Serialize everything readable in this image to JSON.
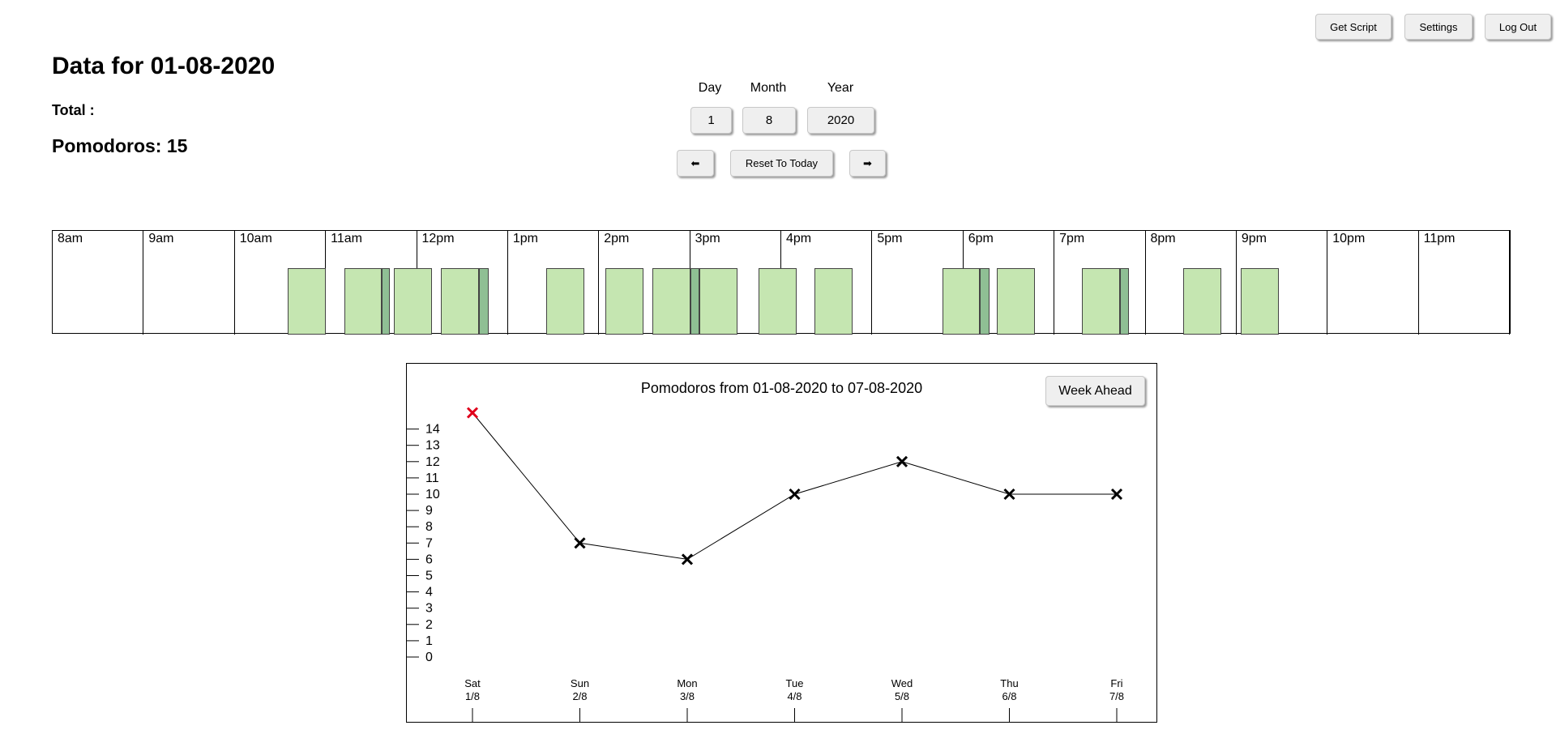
{
  "header": {
    "get_script": "Get Script",
    "settings": "Settings",
    "logout": "Log Out"
  },
  "summary": {
    "title": "Data for 01-08-2020",
    "total_label": "Total :",
    "pomodoros_text": "Pomodoros: 15"
  },
  "date_picker": {
    "day_label": "Day",
    "month_label": "Month",
    "year_label": "Year",
    "day_value": "1",
    "month_value": "8",
    "year_value": "2020",
    "prev_label": "⬅",
    "reset_label": "Reset To Today",
    "next_label": "➡"
  },
  "timeline": {
    "hours": [
      "8am",
      "9am",
      "10am",
      "11am",
      "12pm",
      "1pm",
      "2pm",
      "3pm",
      "4pm",
      "5pm",
      "6pm",
      "7pm",
      "8pm",
      "9pm",
      "10pm",
      "11pm"
    ],
    "start_hour": 8,
    "end_hour": 24,
    "pomodoro_color": "#c5e6b1",
    "break_color": "#8fbf94",
    "pomodoros": [
      {
        "start": "10:35",
        "end": "11:00"
      },
      {
        "start": "11:12",
        "end": "11:37"
      },
      {
        "start": "11:45",
        "end": "12:10"
      },
      {
        "start": "12:16",
        "end": "12:41"
      },
      {
        "start": "13:25",
        "end": "13:50"
      },
      {
        "start": "14:04",
        "end": "14:29"
      },
      {
        "start": "14:35",
        "end": "15:00"
      },
      {
        "start": "15:06",
        "end": "15:31"
      },
      {
        "start": "15:45",
        "end": "16:10"
      },
      {
        "start": "16:22",
        "end": "16:47"
      },
      {
        "start": "17:46",
        "end": "18:11"
      },
      {
        "start": "18:22",
        "end": "18:47"
      },
      {
        "start": "19:18",
        "end": "19:43"
      },
      {
        "start": "20:25",
        "end": "20:50"
      },
      {
        "start": "21:03",
        "end": "21:28"
      }
    ],
    "breaks": [
      {
        "start": "11:37",
        "end": "11:42"
      },
      {
        "start": "12:41",
        "end": "12:47"
      },
      {
        "start": "15:00",
        "end": "15:06"
      },
      {
        "start": "18:11",
        "end": "18:17"
      },
      {
        "start": "19:43",
        "end": "19:49"
      }
    ]
  },
  "week_chart": {
    "week_ahead_label": "Week Ahead",
    "chart_data": {
      "type": "line",
      "title": "Pomodoros from 01-08-2020 to 07-08-2020",
      "xlabel": "",
      "ylabel": "",
      "categories": [
        {
          "day": "Sat",
          "date": "1/8"
        },
        {
          "day": "Sun",
          "date": "2/8"
        },
        {
          "day": "Mon",
          "date": "3/8"
        },
        {
          "day": "Tue",
          "date": "4/8"
        },
        {
          "day": "Wed",
          "date": "5/8"
        },
        {
          "day": "Thu",
          "date": "6/8"
        },
        {
          "day": "Fri",
          "date": "7/8"
        }
      ],
      "values": [
        15,
        7,
        6,
        10,
        12,
        10,
        10
      ],
      "highlight_index": 0,
      "highlight_color": "#e0001b",
      "point_color": "#000000",
      "yticks": [
        0,
        1,
        2,
        3,
        4,
        5,
        6,
        7,
        8,
        9,
        10,
        11,
        12,
        13,
        14
      ],
      "ylim": [
        0,
        15
      ],
      "grid": false
    }
  }
}
